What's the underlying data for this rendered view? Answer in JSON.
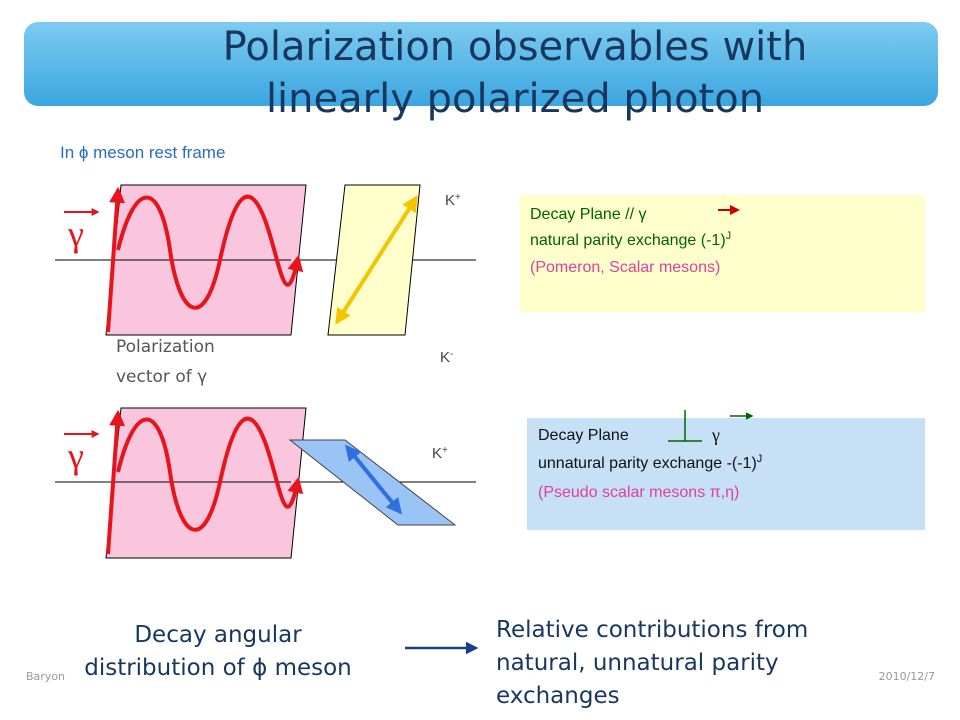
{
  "header": {
    "title_lines": [
      "Polarization observables with",
      "linearly polarized photon"
    ]
  },
  "frame_label": "In ϕ meson rest frame",
  "photon_symbol": "γ",
  "kaons": {
    "top_plus": {
      "base": "K",
      "sup": "+"
    },
    "top_minus": {
      "base": "K",
      "sup": "-"
    },
    "bottom_plus": {
      "base": "K",
      "sup": "+"
    }
  },
  "polarization_label": [
    "Polarization",
    "vector of γ"
  ],
  "natural_box": {
    "line1": "Decay Plane // γ",
    "line2": {
      "text": "natural parity exchange (-1)",
      "sup": "J"
    },
    "line3": "(Pomeron, Scalar mesons)"
  },
  "unnatural_box": {
    "line1_a": "Decay Plane",
    "line1_b": "γ",
    "line2": {
      "text": "unnatural parity exchange -(-1)",
      "sup": "J"
    },
    "line3": "(Pseudo scalar mesons π,η)"
  },
  "bottom": {
    "left": [
      "Decay angular",
      "distribution of ϕ meson"
    ],
    "right": [
      "Relative contributions from",
      "natural, unnatural parity",
      "exchanges"
    ]
  },
  "footer": {
    "left": "Baryon",
    "right": "2010/12/7"
  }
}
